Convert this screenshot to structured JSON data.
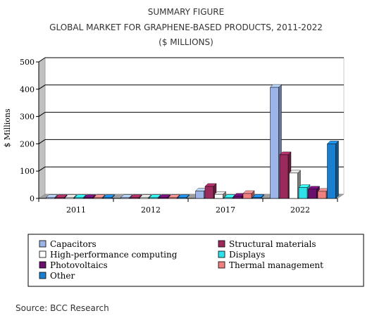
{
  "chart_data": {
    "type": "bar",
    "title_lines": [
      "SUMMARY FIGURE",
      "GLOBAL MARKET FOR GRAPHENE-BASED PRODUCTS, 2011-2022",
      "($ MILLIONS)"
    ],
    "ylabel": "$ Millions",
    "xlabel": "",
    "ylim": [
      0,
      500
    ],
    "yticks": [
      "0",
      "100",
      "200",
      "300",
      "400",
      "500"
    ],
    "categories": [
      "2011",
      "2012",
      "2017",
      "2022"
    ],
    "series": [
      {
        "name": "Capacitors",
        "color": "#9db4e8",
        "values": [
          0,
          0,
          27,
          407
        ]
      },
      {
        "name": "Structural materials",
        "color": "#9b2a5c",
        "values": [
          0,
          0,
          44,
          160
        ]
      },
      {
        "name": "High-performance computing",
        "color": "#ffffff",
        "values": [
          0,
          0,
          15,
          93
        ]
      },
      {
        "name": "Displays",
        "color": "#2ee0e8",
        "values": [
          0,
          0,
          3,
          40
        ]
      },
      {
        "name": "Photovoltaics",
        "color": "#6a0f6e",
        "values": [
          0,
          0,
          8,
          34
        ]
      },
      {
        "name": "Thermal management",
        "color": "#f08080",
        "values": [
          0,
          0,
          18,
          26
        ]
      },
      {
        "name": "Other",
        "color": "#1a7fd0",
        "values": [
          0,
          0,
          4,
          200
        ]
      }
    ],
    "legend_position": "bottom",
    "grid": true
  },
  "source_text": "Source: BCC Research"
}
